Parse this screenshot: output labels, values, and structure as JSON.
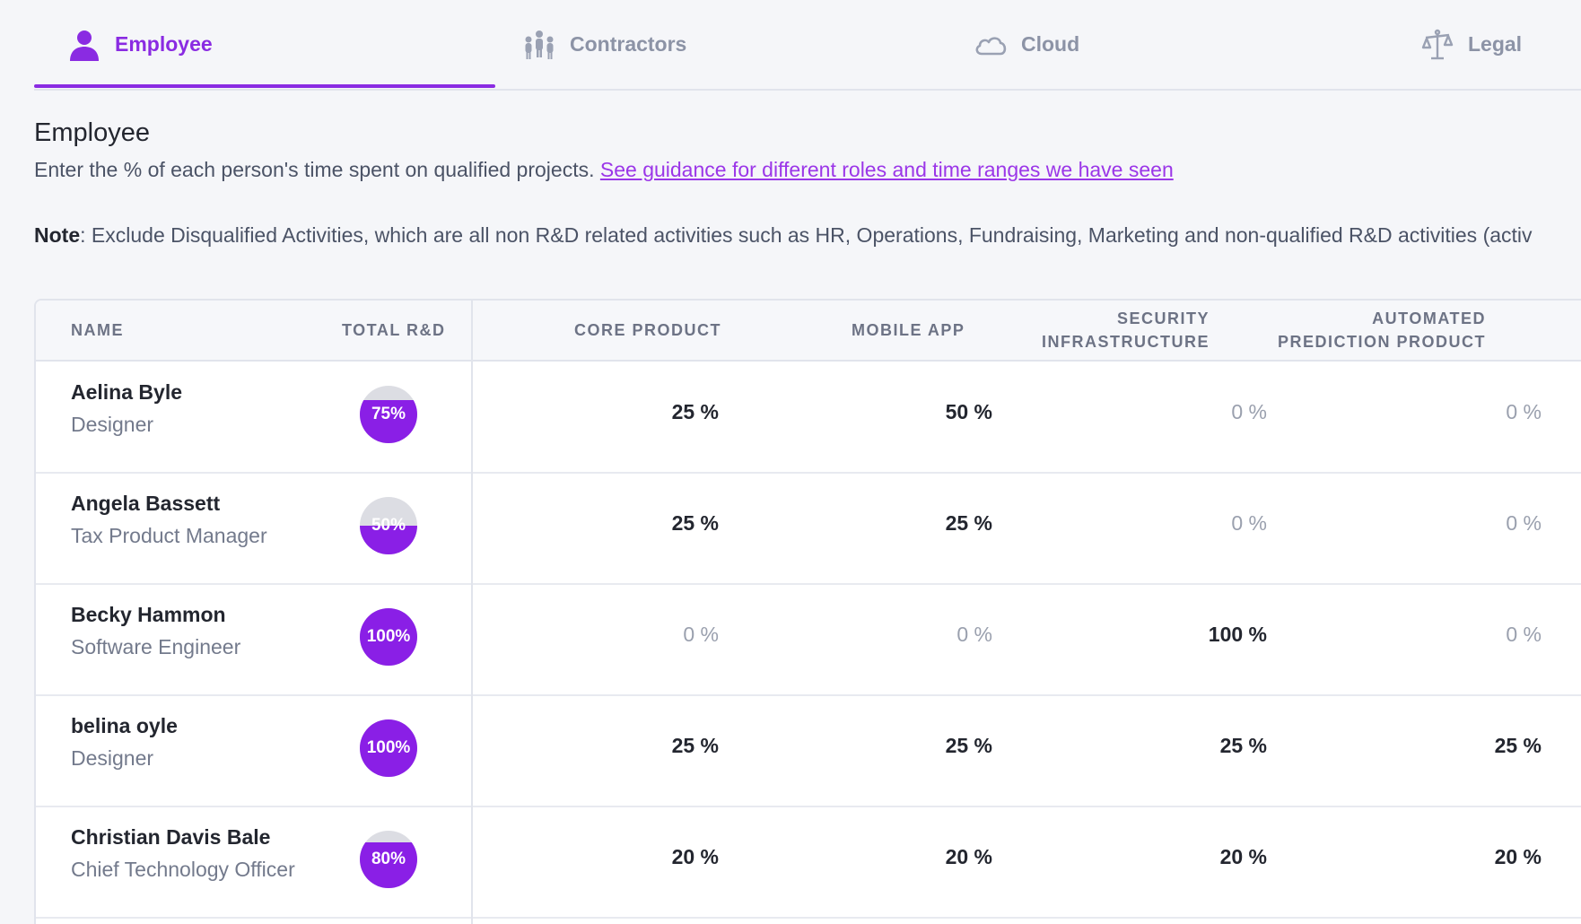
{
  "tabs": [
    {
      "label": "Employee",
      "icon": "person-icon",
      "active": true
    },
    {
      "label": "Contractors",
      "icon": "group-icon",
      "active": false
    },
    {
      "label": "Cloud",
      "icon": "cloud-icon",
      "active": false
    },
    {
      "label": "Legal",
      "icon": "scales-icon",
      "active": false
    }
  ],
  "section": {
    "title": "Employee",
    "intro_text": "Enter the % of each person's time spent on qualified projects. ",
    "guidance_link": "See guidance for different roles and time ranges we have seen",
    "note_label": "Note",
    "note_text": ": Exclude Disqualified Activities, which are all non R&D related activities such as HR, Operations, Fundraising, Marketing and non-qualified R&D activities (activ"
  },
  "table": {
    "headers": {
      "name": "NAME",
      "total": "TOTAL R&D",
      "core": "CORE PRODUCT",
      "mobile": "MOBILE APP",
      "security_1": "SECURITY",
      "security_2": "INFRASTRUCTURE",
      "automated_1": "AUTOMATED",
      "automated_2": "PREDICTION PRODUCT"
    },
    "rows": [
      {
        "name": "Aelina Byle",
        "role": "Designer",
        "total_label": "75%",
        "total_value": 75,
        "core": "25 %",
        "mobile": "50 %",
        "security": "0 %",
        "automated": "0 %"
      },
      {
        "name": "Angela Bassett",
        "role": "Tax Product Manager",
        "total_label": "50%",
        "total_value": 50,
        "core": "25 %",
        "mobile": "25 %",
        "security": "0 %",
        "automated": "0 %"
      },
      {
        "name": "Becky Hammon",
        "role": "Software Engineer",
        "total_label": "100%",
        "total_value": 100,
        "core": "0 %",
        "mobile": "0 %",
        "security": "100 %",
        "automated": "0 %"
      },
      {
        "name": "belina oyle",
        "role": "Designer",
        "total_label": "100%",
        "total_value": 100,
        "core": "25 %",
        "mobile": "25 %",
        "security": "25 %",
        "automated": "25 %"
      },
      {
        "name": "Christian Davis Bale",
        "role": "Chief Technology Officer",
        "total_label": "80%",
        "total_value": 80,
        "core": "20 %",
        "mobile": "20 %",
        "security": "20 %",
        "automated": "20 %"
      }
    ]
  },
  "colors": {
    "accent": "#8a2be2",
    "gauge_fill": "#8a1fe6",
    "gauge_empty": "#dcdde3"
  }
}
